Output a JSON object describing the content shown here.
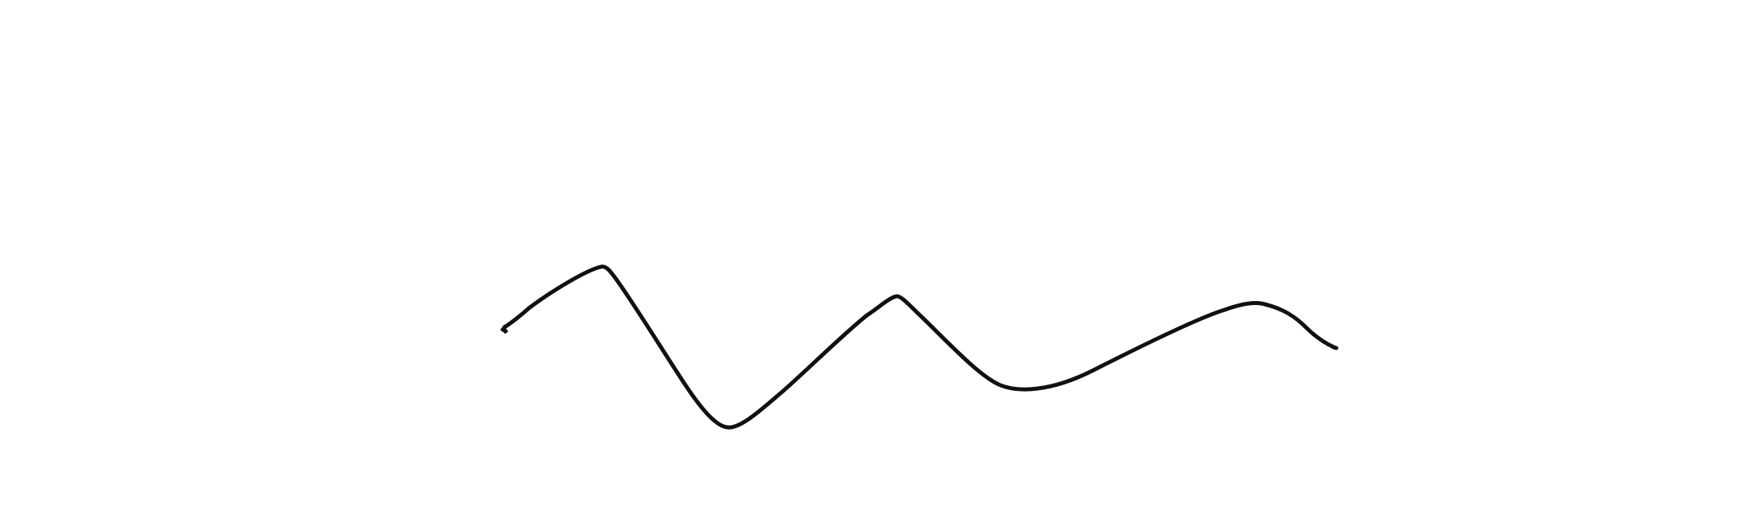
{
  "drawing": {
    "background_color": "#ffffff",
    "stroke_color": "#111111"
  }
}
